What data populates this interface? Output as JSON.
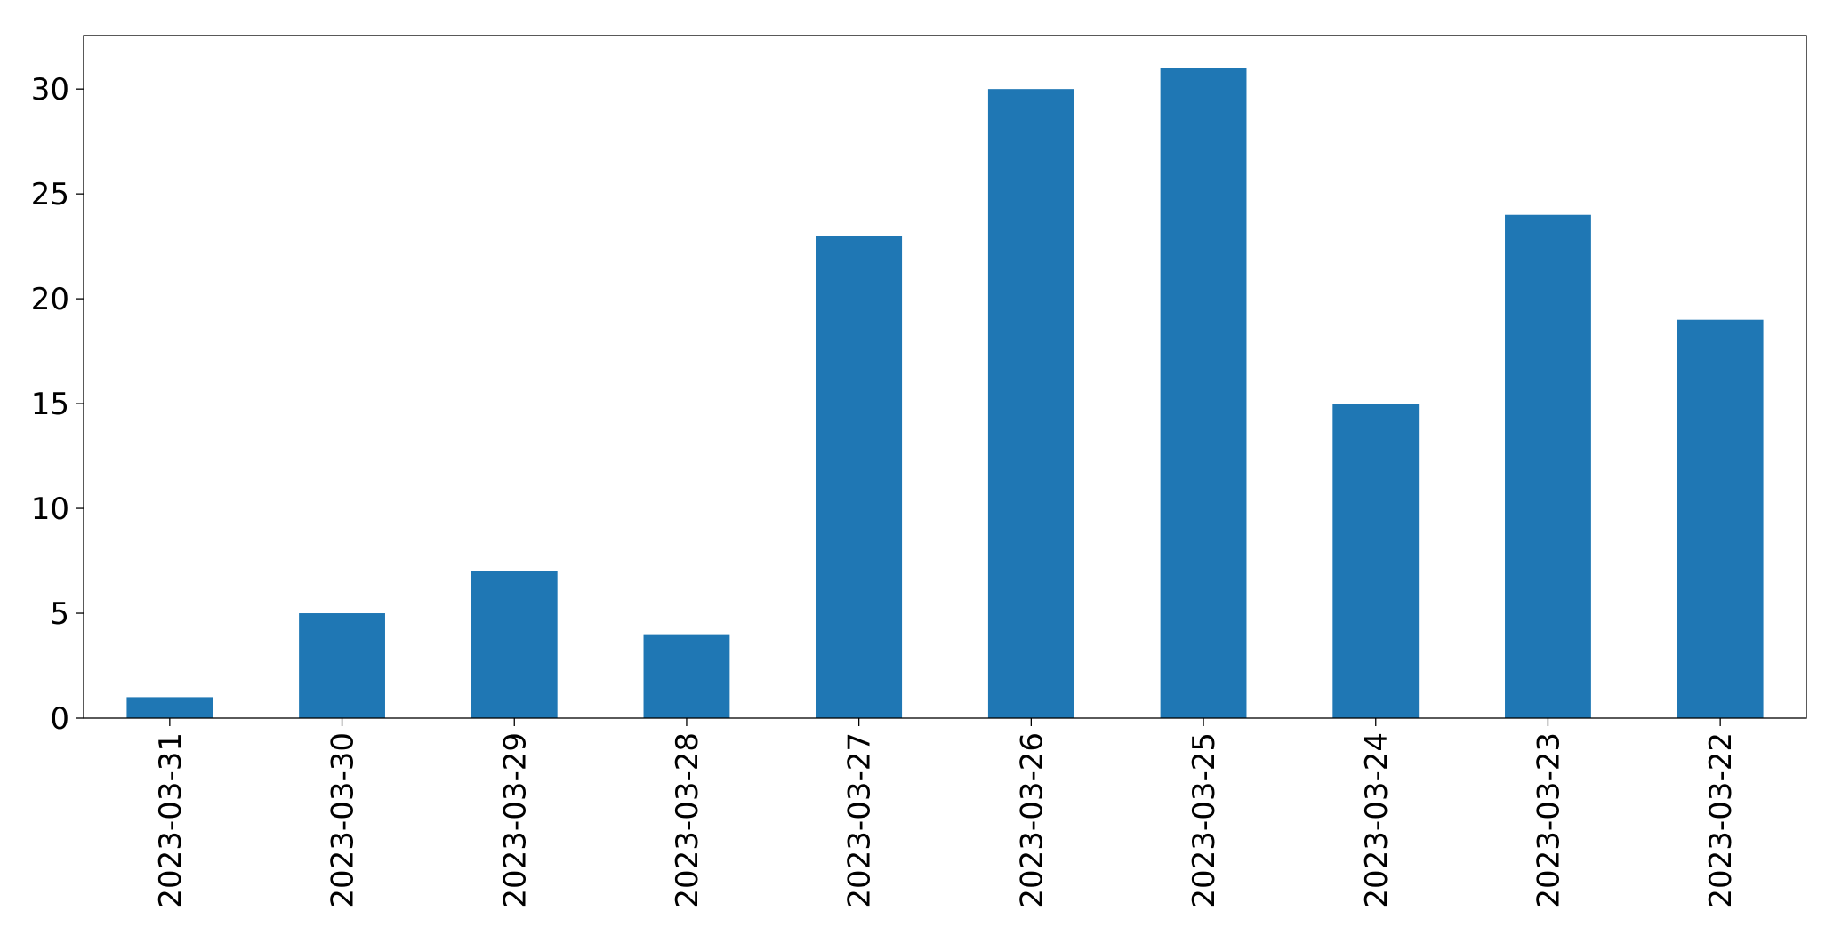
{
  "chart_data": {
    "type": "bar",
    "categories": [
      "2023-03-31",
      "2023-03-30",
      "2023-03-29",
      "2023-03-28",
      "2023-03-27",
      "2023-03-26",
      "2023-03-25",
      "2023-03-24",
      "2023-03-23",
      "2023-03-22"
    ],
    "values": [
      1,
      5,
      7,
      4,
      23,
      30,
      31,
      15,
      24,
      19
    ],
    "color": "#1f77b4",
    "ylim": [
      0,
      32.55
    ],
    "yticks": [
      0,
      5,
      10,
      15,
      20,
      25,
      30
    ],
    "grid": false
  }
}
